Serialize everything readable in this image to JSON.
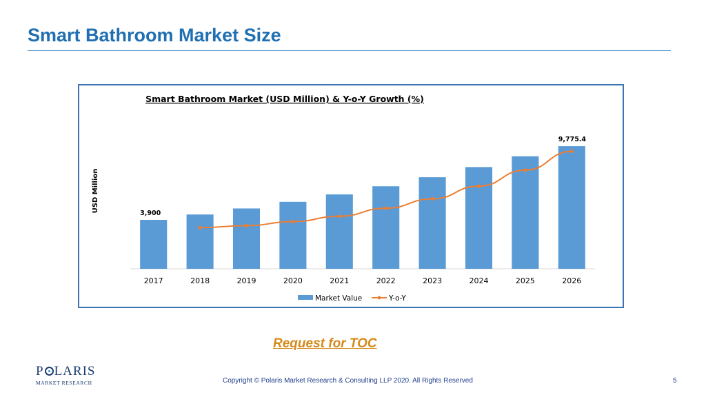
{
  "slide": {
    "title": "Smart Bathroom Market Size",
    "toc_link": "Request for TOC",
    "copyright": "Copyright © Polaris Market Research & Consulting LLP 2020. All Rights Reserved",
    "page_number": "5",
    "logo": {
      "main_before": "P",
      "main_after": "LARIS",
      "sub": "MARKET RESEARCH"
    }
  },
  "colors": {
    "title": "#1f6fb2",
    "bar": "#5b9bd5",
    "line": "#ed7d31",
    "frame": "#3f74b3",
    "toc": "#d68a1c"
  },
  "chart_data": {
    "type": "bar",
    "title": "Smart Bathroom Market (USD Million) & Y-o-Y Growth (%)",
    "xlabel": "",
    "ylabel": "USD Million",
    "categories": [
      "2017",
      "2018",
      "2019",
      "2020",
      "2021",
      "2022",
      "2023",
      "2024",
      "2025",
      "2026"
    ],
    "series": [
      {
        "name": "Market Value",
        "type": "bar",
        "values": [
          3900,
          4330,
          4810,
          5340,
          5930,
          6580,
          7300,
          8110,
          8970,
          9775.4
        ]
      },
      {
        "name": "Y-o-Y",
        "type": "line",
        "values": [
          null,
          0.9,
          1.2,
          1.8,
          2.6,
          3.8,
          5.2,
          7.1,
          9.5,
          12.3
        ]
      }
    ],
    "data_labels": [
      {
        "category": "2017",
        "text": "3,900"
      },
      {
        "category": "2026",
        "text": "9,775.4"
      }
    ],
    "ylim": [
      0,
      10000
    ],
    "grid": false,
    "legend_position": "bottom"
  }
}
